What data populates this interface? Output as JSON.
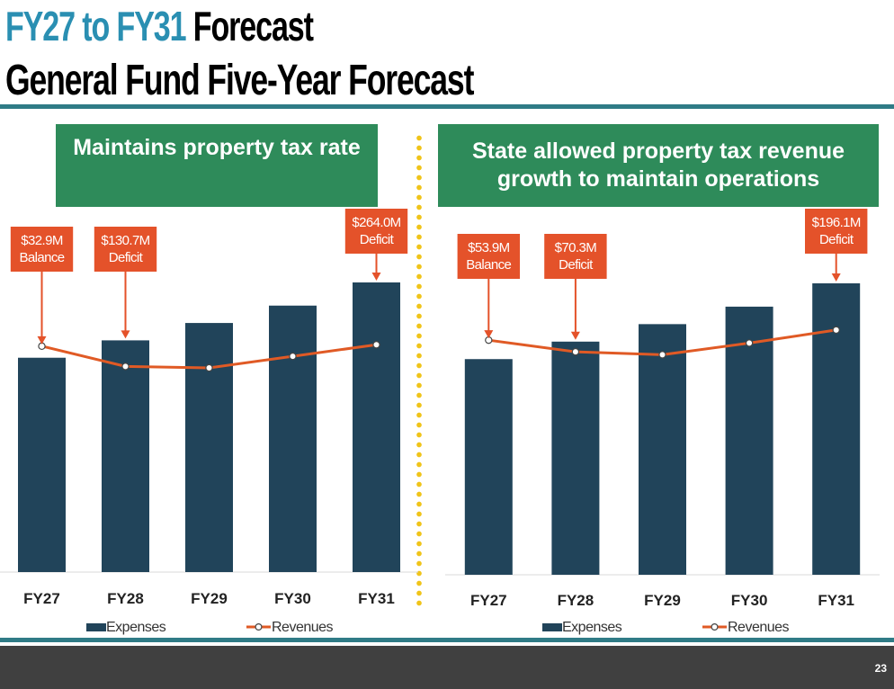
{
  "title": {
    "line1_accent": "FY27 to FY31",
    "line1_rest": "Forecast",
    "line2": "General Fund Five-Year Forecast"
  },
  "colors": {
    "bar": "#21445a",
    "line": "#e05a25",
    "callout": "#e4522a",
    "header": "#2e8b5a",
    "rule": "#2f7b86",
    "divider": "#f0c419",
    "title_accent": "#2a8fb2"
  },
  "page_number": "23",
  "chart_data": [
    {
      "type": "bar",
      "heading": "Maintains property tax rate",
      "categories": [
        "FY27",
        "FY28",
        "FY29",
        "FY30",
        "FY31"
      ],
      "series": [
        {
          "name": "Expenses",
          "type": "bar",
          "values": [
            74,
            80,
            86,
            92,
            100
          ]
        },
        {
          "name": "Revenues",
          "type": "line",
          "values": [
            78,
            71,
            70.5,
            74.5,
            78.5
          ]
        }
      ],
      "ylim": [
        0,
        100
      ],
      "legend": "bottom",
      "annotations": [
        {
          "index": 0,
          "line1": "$32.9M",
          "line2": "Balance"
        },
        {
          "index": 1,
          "line1": "$130.7M",
          "line2": "Deficit"
        },
        {
          "index": 4,
          "line1": "$264.0M",
          "line2": "Deficit"
        }
      ]
    },
    {
      "type": "bar",
      "heading": "State allowed property tax revenue growth to maintain operations",
      "categories": [
        "FY27",
        "FY28",
        "FY29",
        "FY30",
        "FY31"
      ],
      "series": [
        {
          "name": "Expenses",
          "type": "bar",
          "values": [
            74,
            80,
            86,
            92,
            100
          ]
        },
        {
          "name": "Revenues",
          "type": "line",
          "values": [
            80.5,
            76.5,
            75.5,
            79.5,
            84
          ]
        }
      ],
      "ylim": [
        0,
        100
      ],
      "legend": "bottom",
      "annotations": [
        {
          "index": 0,
          "line1": "$53.9M",
          "line2": "Balance"
        },
        {
          "index": 1,
          "line1": "$70.3M",
          "line2": "Deficit"
        },
        {
          "index": 4,
          "line1": "$196.1M",
          "line2": "Deficit"
        }
      ]
    }
  ]
}
